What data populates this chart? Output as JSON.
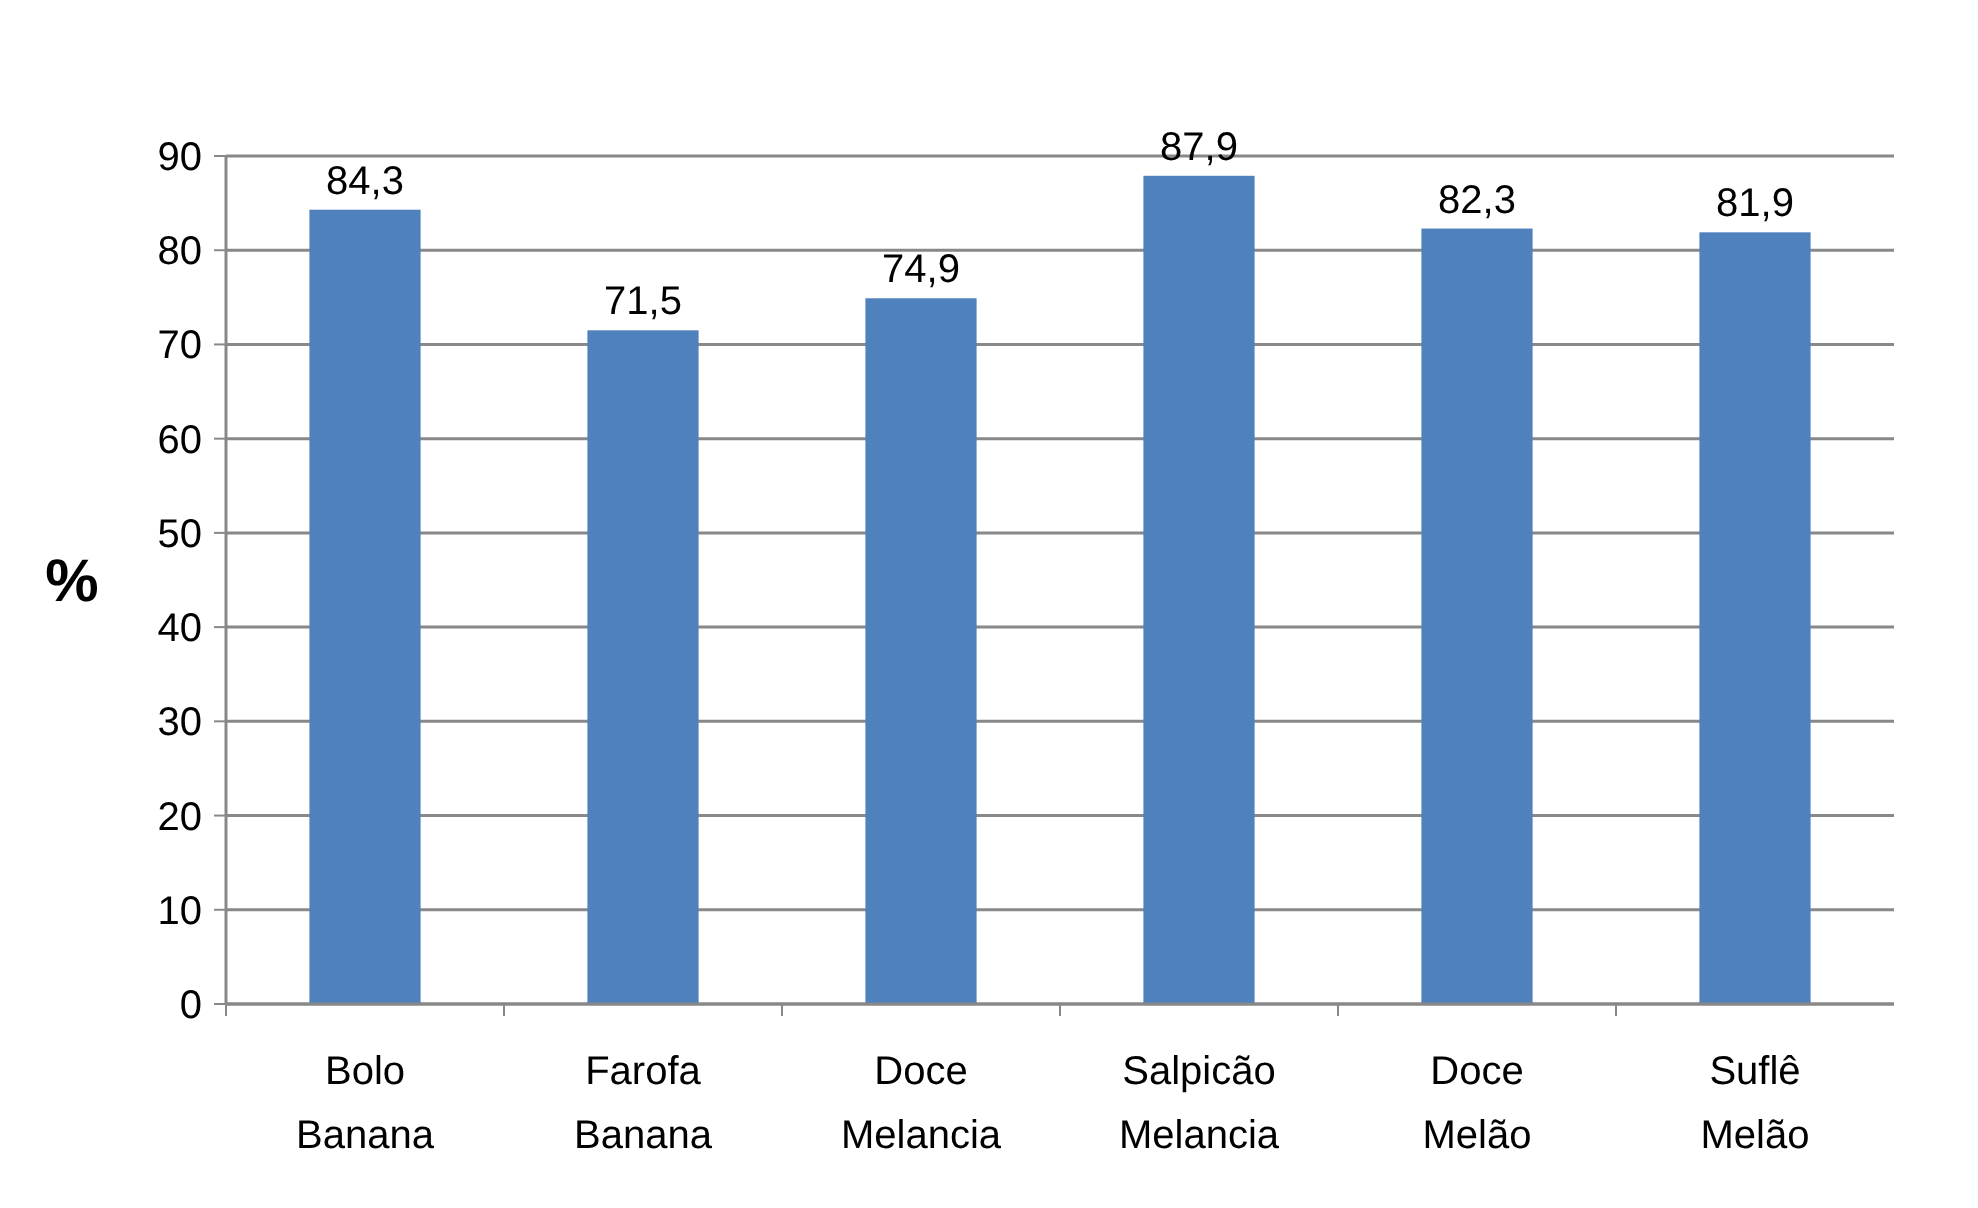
{
  "chart_data": {
    "type": "bar",
    "ylabel": "%",
    "categories": [
      "Bolo Banana",
      "Farofa Banana",
      "Doce Melancia",
      "Salpicão Melancia",
      "Doce Melão",
      "Suflê Melão"
    ],
    "values": [
      84.3,
      71.5,
      74.9,
      87.9,
      82.3,
      81.9
    ],
    "value_labels": [
      "84,3",
      "71,5",
      "74,9",
      "87,9",
      "82,3",
      "81,9"
    ],
    "color": "#4f81bd",
    "ylim": [
      0,
      90
    ],
    "yticks": [
      0,
      10,
      20,
      30,
      40,
      50,
      60,
      70,
      80,
      90
    ],
    "grid": "y"
  }
}
